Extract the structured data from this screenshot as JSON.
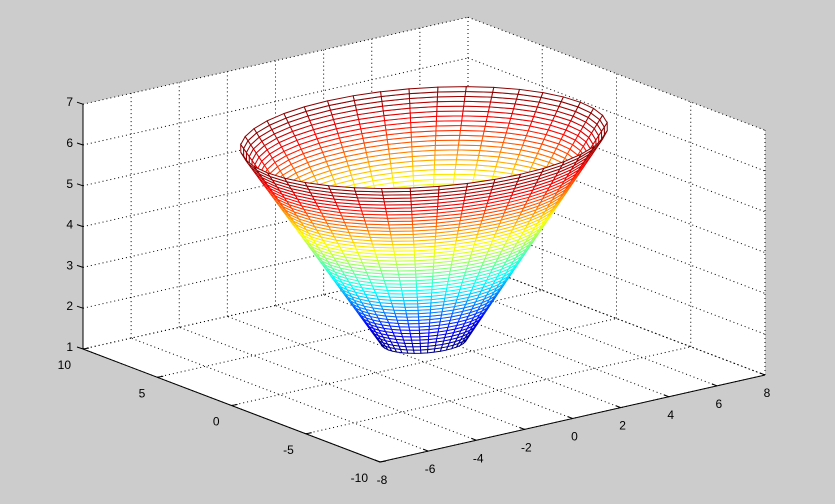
{
  "chart_data": {
    "type": "mesh",
    "title": "",
    "xlabel": "",
    "ylabel": "",
    "zlabel": "",
    "xlim": [
      -8,
      8
    ],
    "ylim": [
      -10,
      10
    ],
    "zlim": [
      1,
      7
    ],
    "xticks": [
      "-8",
      "-6",
      "-4",
      "-2",
      "0",
      "2",
      "4",
      "6",
      "8"
    ],
    "yticks": [
      "-10",
      "-5",
      "0",
      "5",
      "10"
    ],
    "zticks": [
      "1",
      "2",
      "3",
      "4",
      "5",
      "6",
      "7"
    ],
    "grid": true,
    "colormap": "jet",
    "view": {
      "azimuth": -37.5,
      "elevation": 30
    },
    "surface": {
      "shape": "cone",
      "equation": "z = sqrt(x^2 + y^2)",
      "center": [
        0,
        0
      ],
      "r_range": [
        1.5,
        6.5
      ],
      "rings": 50,
      "meridians": 40
    }
  },
  "colors": {
    "background": "#cccccc",
    "axes": "#ffffff",
    "grid": "#000000"
  }
}
